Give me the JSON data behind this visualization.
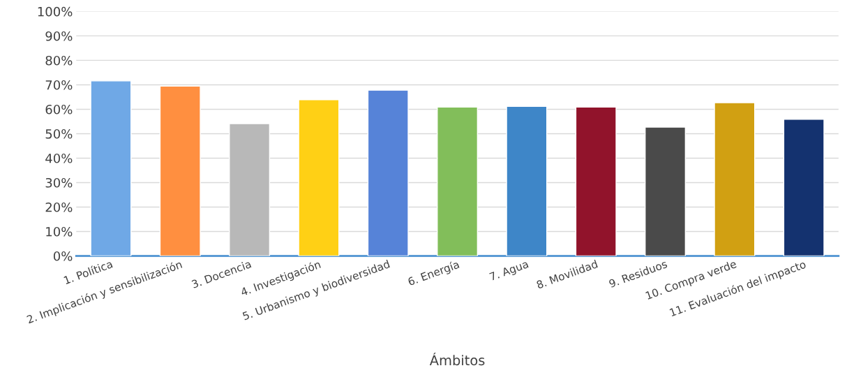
{
  "chart_data": {
    "type": "bar",
    "xlabel": "Ámbitos",
    "categories": [
      "1. Política",
      "2. Implicación y sensibilización",
      "3. Docencia",
      "4. Investigación",
      "5. Urbanismo y biodiversidad",
      "6. Energía",
      "7. Agua",
      "8. Movilidad",
      "9. Residuos",
      "10. Compra verde",
      "11. Evaluación del impacto"
    ],
    "values": [
      71.6,
      69.5,
      54.1,
      63.9,
      67.8,
      60.9,
      61.2,
      60.9,
      52.7,
      62.7,
      55.9
    ],
    "colors": [
      "#6fa8e6",
      "#ff8f40",
      "#b8b8b8",
      "#ffd015",
      "#5683d8",
      "#82be5a",
      "#3e86c8",
      "#91132b",
      "#4a4a4a",
      "#d1a012",
      "#14326f"
    ],
    "ylim": [
      0,
      100
    ],
    "yticks": [
      {
        "value": 0,
        "label": "0%"
      },
      {
        "value": 10,
        "label": "10%"
      },
      {
        "value": 20,
        "label": "20%"
      },
      {
        "value": 30,
        "label": "30%"
      },
      {
        "value": 40,
        "label": "40%"
      },
      {
        "value": 50,
        "label": "50%"
      },
      {
        "value": 60,
        "label": "60%"
      },
      {
        "value": 70,
        "label": "70%"
      },
      {
        "value": 80,
        "label": "80%"
      },
      {
        "value": 90,
        "label": "90%"
      },
      {
        "value": 100,
        "label": "100%"
      }
    ],
    "grid": "y",
    "legend": false
  }
}
